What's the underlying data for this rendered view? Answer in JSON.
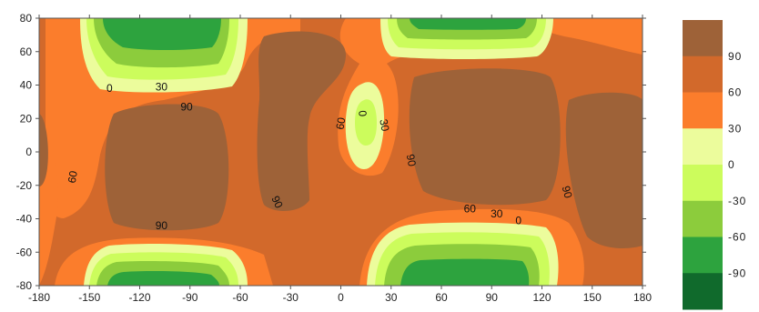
{
  "chart_data": {
    "type": "heatmap",
    "subtype": "filled-contour",
    "x": {
      "min": -180,
      "max": 180,
      "ticks": [
        -180,
        -150,
        -120,
        -90,
        -60,
        -30,
        0,
        30,
        60,
        90,
        120,
        150,
        180
      ]
    },
    "y": {
      "min": -80,
      "max": 80,
      "ticks": [
        80,
        60,
        40,
        20,
        0,
        -20,
        -40,
        -60,
        -80
      ]
    },
    "levels": [
      {
        "min": 90,
        "max": 120,
        "color": "#9e6238"
      },
      {
        "min": 60,
        "max": 90,
        "color": "#d2692b"
      },
      {
        "min": 30,
        "max": 60,
        "color": "#fb7d2c"
      },
      {
        "min": 0,
        "max": 30,
        "color": "#ecfc9c"
      },
      {
        "min": -30,
        "max": 0,
        "color": "#ccfc5c"
      },
      {
        "min": -60,
        "max": -30,
        "color": "#8ccc3c"
      },
      {
        "min": -90,
        "max": -60,
        "color": "#2da33e"
      },
      {
        "min": -120,
        "max": -90,
        "color": "#106a2c"
      }
    ],
    "colorbar_labels": [
      "90",
      "60",
      "30",
      "0",
      "-30",
      "-60",
      "-90"
    ],
    "contour_labels": [
      {
        "text": "0",
        "x": -138,
        "y": 38,
        "rotate": 0
      },
      {
        "text": "30",
        "x": -107,
        "y": 39,
        "rotate": 0
      },
      {
        "text": "90",
        "x": -92,
        "y": 27,
        "rotate": 0
      },
      {
        "text": "60",
        "x": -160,
        "y": -15,
        "rotate": -80
      },
      {
        "text": "90",
        "x": -107,
        "y": -44,
        "rotate": 0
      },
      {
        "text": "90",
        "x": -38,
        "y": -30,
        "rotate": 65
      },
      {
        "text": "60",
        "x": 0,
        "y": 17,
        "rotate": -80
      },
      {
        "text": "0",
        "x": 13,
        "y": 23,
        "rotate": 85
      },
      {
        "text": "30",
        "x": 26,
        "y": 16,
        "rotate": 80
      },
      {
        "text": "90",
        "x": 42,
        "y": -5,
        "rotate": 80
      },
      {
        "text": "90",
        "x": 135,
        "y": -24,
        "rotate": 75
      },
      {
        "text": "60",
        "x": 77,
        "y": -34,
        "rotate": 0
      },
      {
        "text": "30",
        "x": 93,
        "y": -37,
        "rotate": 0
      },
      {
        "text": "0",
        "x": 106,
        "y": -41,
        "rotate": 0
      }
    ],
    "title": "",
    "xlabel": "",
    "ylabel": "",
    "grid": false
  }
}
